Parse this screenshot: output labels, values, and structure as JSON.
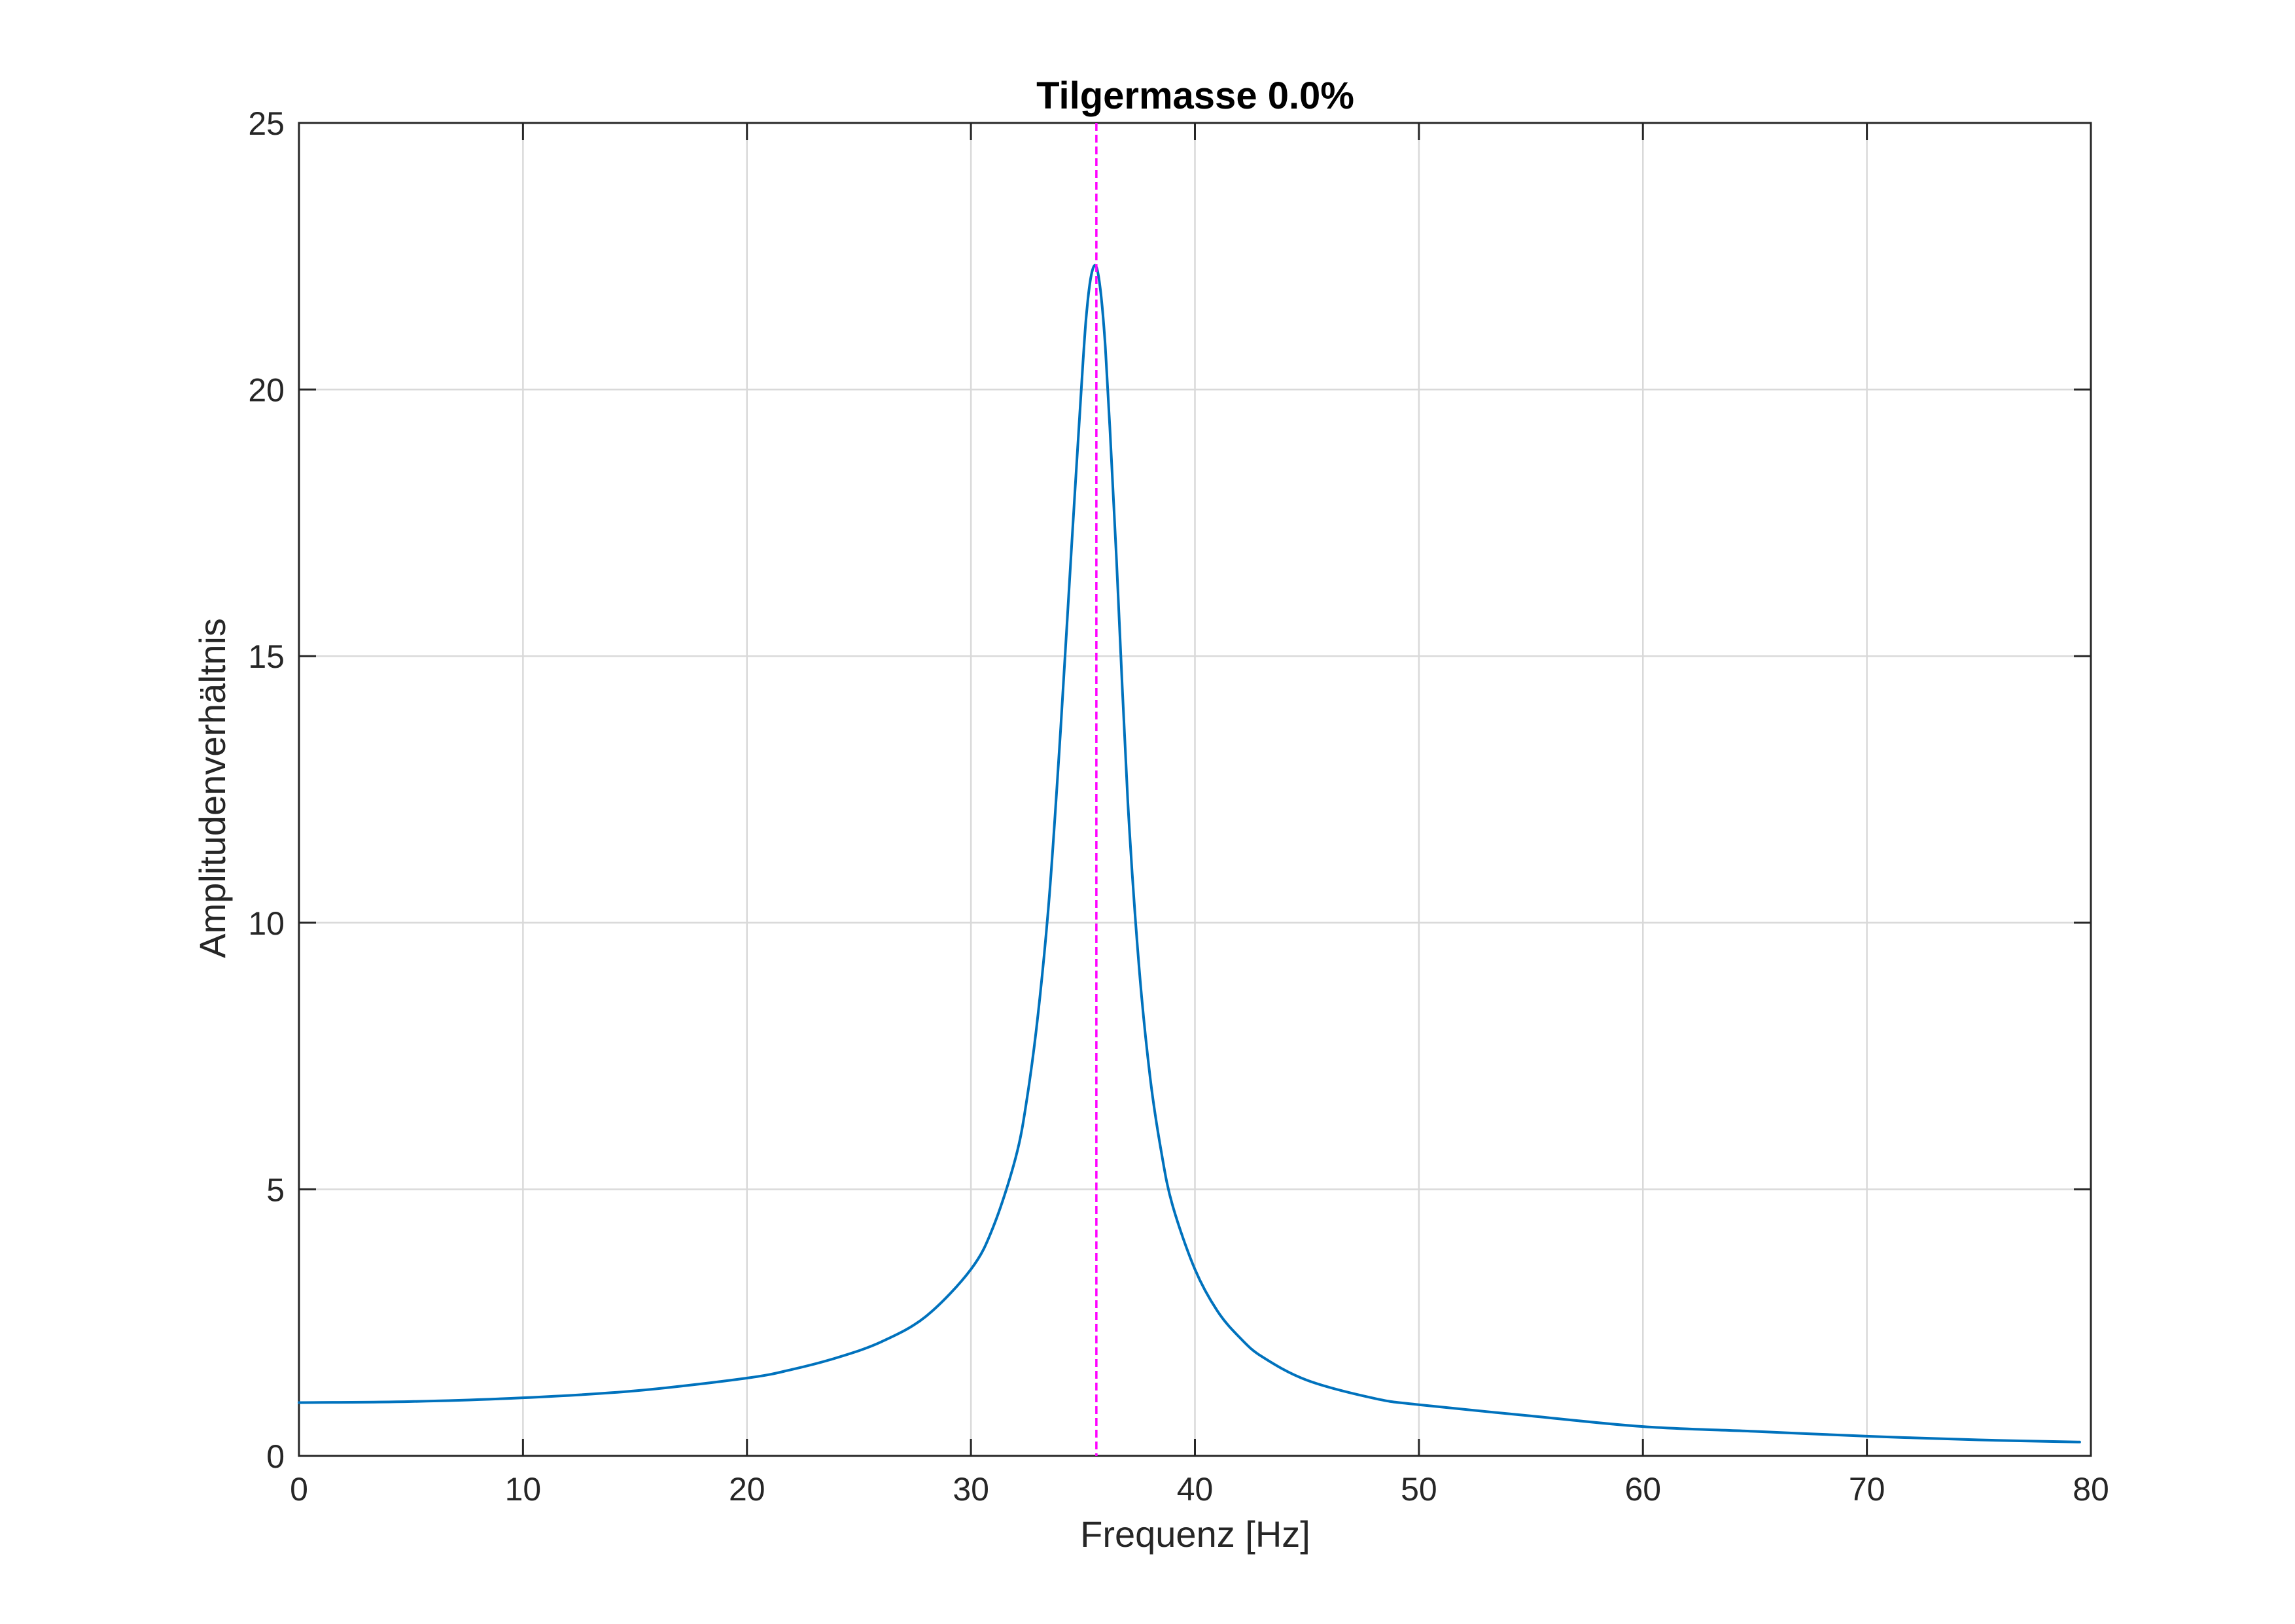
{
  "chart_data": {
    "type": "line",
    "title": "Tilgermasse 0.0%",
    "xlabel": "Frequenz [Hz]",
    "ylabel": "Amplitudenverhältnis",
    "xlim": [
      0,
      80
    ],
    "ylim": [
      0,
      25
    ],
    "xticks": [
      0,
      10,
      20,
      30,
      40,
      50,
      60,
      70,
      80
    ],
    "yticks": [
      0,
      5,
      10,
      15,
      20,
      25
    ],
    "xtick_labels": [
      "0",
      "10",
      "20",
      "30",
      "40",
      "50",
      "60",
      "70",
      "80"
    ],
    "ytick_labels": [
      "0",
      "5",
      "10",
      "15",
      "20",
      "25"
    ],
    "grid": true,
    "series": [
      {
        "color": "#0072BD",
        "x": [
          0,
          5,
          10,
          15,
          20,
          22,
          24,
          26,
          28,
          30,
          31,
          32,
          32.5,
          33,
          33.5,
          34,
          34.5,
          35,
          35.2,
          35.4,
          35.6,
          35.8,
          36,
          36.2,
          36.5,
          37,
          37.5,
          38,
          38.5,
          39,
          40,
          41,
          42,
          43,
          45,
          48,
          50,
          55,
          60,
          65,
          70,
          75,
          79.5
        ],
        "y": [
          1.0,
          1.02,
          1.09,
          1.22,
          1.46,
          1.62,
          1.84,
          2.14,
          2.62,
          3.5,
          4.3,
          5.6,
          6.7,
          8.3,
          10.5,
          13.6,
          17.1,
          20.5,
          21.6,
          22.2,
          22.3,
          21.8,
          20.8,
          19.3,
          16.8,
          12.3,
          9.2,
          7.1,
          5.7,
          4.7,
          3.5,
          2.72,
          2.22,
          1.86,
          1.42,
          1.08,
          0.96,
          0.75,
          0.55,
          0.46,
          0.37,
          0.3,
          0.26
        ]
      }
    ],
    "annotations": [
      {
        "type": "vertical-dashed-line",
        "x": 35.6,
        "color": "#FF00FF"
      }
    ]
  }
}
